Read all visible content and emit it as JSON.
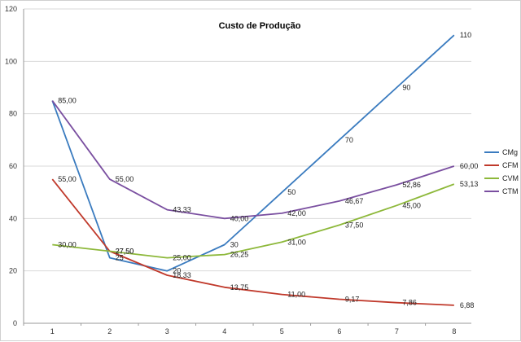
{
  "chart_data": {
    "type": "line",
    "title": "Custo de Produção",
    "xlabel": "",
    "ylabel": "",
    "categories": [
      "1",
      "2",
      "3",
      "4",
      "5",
      "6",
      "7",
      "8"
    ],
    "x": [
      1,
      2,
      3,
      4,
      5,
      6,
      7,
      8
    ],
    "ylim": [
      0,
      120
    ],
    "yticks": [
      0,
      20,
      40,
      60,
      80,
      100,
      120
    ],
    "grid": true,
    "legend_position": "right",
    "series": [
      {
        "name": "CMg",
        "color": "#3a7bbf",
        "values": [
          85,
          25,
          20,
          30,
          50,
          70,
          90,
          110
        ],
        "labels": [
          "",
          "25",
          "20",
          "30",
          "50",
          "70",
          "90",
          "110"
        ]
      },
      {
        "name": "CFM",
        "color": "#c0392b",
        "values": [
          55,
          27.5,
          18.33,
          13.75,
          11,
          9.17,
          7.86,
          6.88
        ],
        "labels": [
          "55,00",
          "27,50",
          "18,33",
          "13,75",
          "11,00",
          "9,17",
          "7,86",
          "6,88"
        ]
      },
      {
        "name": "CVM",
        "color": "#8db83a",
        "values": [
          30,
          27.5,
          25,
          26.25,
          31,
          37.5,
          45,
          53.13
        ],
        "labels": [
          "30,00",
          "27,50",
          "25,00",
          "26,25",
          "31,00",
          "37,50",
          "45,00",
          "53,13"
        ]
      },
      {
        "name": "CTM",
        "color": "#7a4fa0",
        "values": [
          85,
          55,
          43.33,
          40,
          42,
          46.67,
          52.86,
          60
        ],
        "labels": [
          "85,00",
          "55,00",
          "43,33",
          "40,00",
          "42,00",
          "46,67",
          "52,86",
          "60,00"
        ]
      }
    ]
  }
}
